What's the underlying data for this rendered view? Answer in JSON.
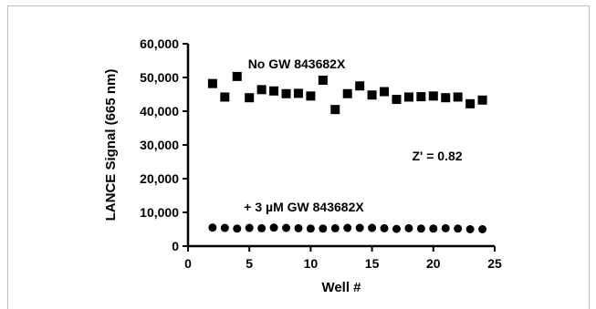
{
  "chart_data": {
    "type": "scatter",
    "title": "",
    "xlabel": "Well #",
    "ylabel": "LANCE Signal (665 nm)",
    "xlim": [
      0,
      25
    ],
    "ylim": [
      0,
      60000
    ],
    "x_ticks": [
      0,
      5,
      10,
      15,
      20,
      25
    ],
    "x_tick_labels": [
      "0",
      "5",
      "10",
      "15",
      "20",
      "25"
    ],
    "y_ticks": [
      0,
      10000,
      20000,
      30000,
      40000,
      50000,
      60000
    ],
    "y_tick_labels": [
      "0",
      "10,000",
      "20,000",
      "30,000",
      "40,000",
      "50,000",
      "60,000"
    ],
    "grid": false,
    "series": [
      {
        "name": "No GW 843682X",
        "marker": "square",
        "color": "#000000",
        "x": [
          2,
          3,
          4,
          5,
          6,
          7,
          8,
          9,
          10,
          11,
          12,
          13,
          14,
          15,
          16,
          17,
          18,
          19,
          20,
          21,
          22,
          23,
          24
        ],
        "values": [
          48200,
          44200,
          50300,
          44000,
          46400,
          46000,
          45200,
          45300,
          44500,
          49200,
          40500,
          45200,
          47500,
          44800,
          45800,
          43500,
          44200,
          44300,
          44500,
          44000,
          44200,
          42200,
          43300
        ]
      },
      {
        "name": "+ 3 µM GW 843682X",
        "marker": "circle",
        "color": "#000000",
        "x": [
          2,
          3,
          4,
          5,
          6,
          7,
          8,
          9,
          10,
          11,
          12,
          13,
          14,
          15,
          16,
          17,
          18,
          19,
          20,
          21,
          22,
          23,
          24
        ],
        "values": [
          5500,
          5400,
          5200,
          5400,
          5300,
          5500,
          5400,
          5300,
          5200,
          5200,
          5300,
          5400,
          5400,
          5400,
          5300,
          5100,
          5300,
          5200,
          5200,
          5300,
          5200,
          5000,
          5000
        ]
      }
    ],
    "annotations": {
      "series_a_label": "No GW 843682X",
      "series_b_label": "+ 3 µM GW 843682X",
      "z_prime": "Z' = 0.82"
    }
  }
}
